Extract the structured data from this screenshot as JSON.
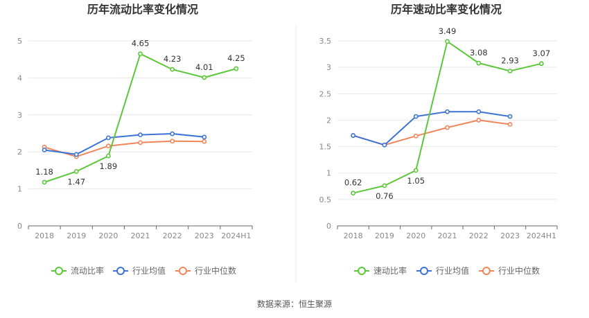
{
  "source": "数据来源：恒生聚源",
  "chart_data": [
    {
      "type": "line",
      "title": "历年流动比率变化情况",
      "categories": [
        "2018",
        "2019",
        "2020",
        "2021",
        "2022",
        "2023",
        "2024H1"
      ],
      "ylim": [
        0,
        5
      ],
      "yticks": [
        0,
        1,
        2,
        3,
        4,
        5
      ],
      "ytick_labels": [
        "0",
        "1",
        "2",
        "3",
        "4",
        "5"
      ],
      "grid": true,
      "legend_position": "bottom",
      "series": [
        {
          "name": "流动比率",
          "color": "#5cc73a",
          "labeled": true,
          "values": [
            1.18,
            1.47,
            1.89,
            4.65,
            4.23,
            4.01,
            4.25
          ],
          "labels": [
            "1.18",
            "1.47",
            "1.89",
            "4.65",
            "4.23",
            "4.01",
            "4.25"
          ]
        },
        {
          "name": "行业均值",
          "color": "#3b73d6",
          "labeled": false,
          "values": [
            2.05,
            1.93,
            2.38,
            2.46,
            2.49,
            2.4,
            null
          ]
        },
        {
          "name": "行业中位数",
          "color": "#f0865a",
          "labeled": false,
          "values": [
            2.13,
            1.87,
            2.16,
            2.25,
            2.29,
            2.28,
            null
          ]
        }
      ]
    },
    {
      "type": "line",
      "title": "历年速动比率变化情况",
      "categories": [
        "2018",
        "2019",
        "2020",
        "2021",
        "2022",
        "2023",
        "2024H1"
      ],
      "ylim": [
        0,
        3.5
      ],
      "yticks": [
        0,
        0.5,
        1,
        1.5,
        2,
        2.5,
        3,
        3.5
      ],
      "ytick_labels": [
        "0",
        "0.5",
        "1",
        "1.5",
        "2",
        "2.5",
        "3",
        "3.5"
      ],
      "grid": true,
      "legend_position": "bottom",
      "series": [
        {
          "name": "速动比率",
          "color": "#5cc73a",
          "labeled": true,
          "values": [
            0.62,
            0.76,
            1.05,
            3.49,
            3.08,
            2.93,
            3.07
          ],
          "labels": [
            "0.62",
            "0.76",
            "1.05",
            "3.49",
            "3.08",
            "2.93",
            "3.07"
          ]
        },
        {
          "name": "行业均值",
          "color": "#3b73d6",
          "labeled": false,
          "values": [
            1.71,
            1.53,
            2.07,
            2.16,
            2.16,
            2.07,
            null
          ]
        },
        {
          "name": "行业中位数",
          "color": "#f0865a",
          "labeled": false,
          "values": [
            1.71,
            1.53,
            1.7,
            1.86,
            2.0,
            1.92,
            null
          ]
        }
      ]
    }
  ]
}
